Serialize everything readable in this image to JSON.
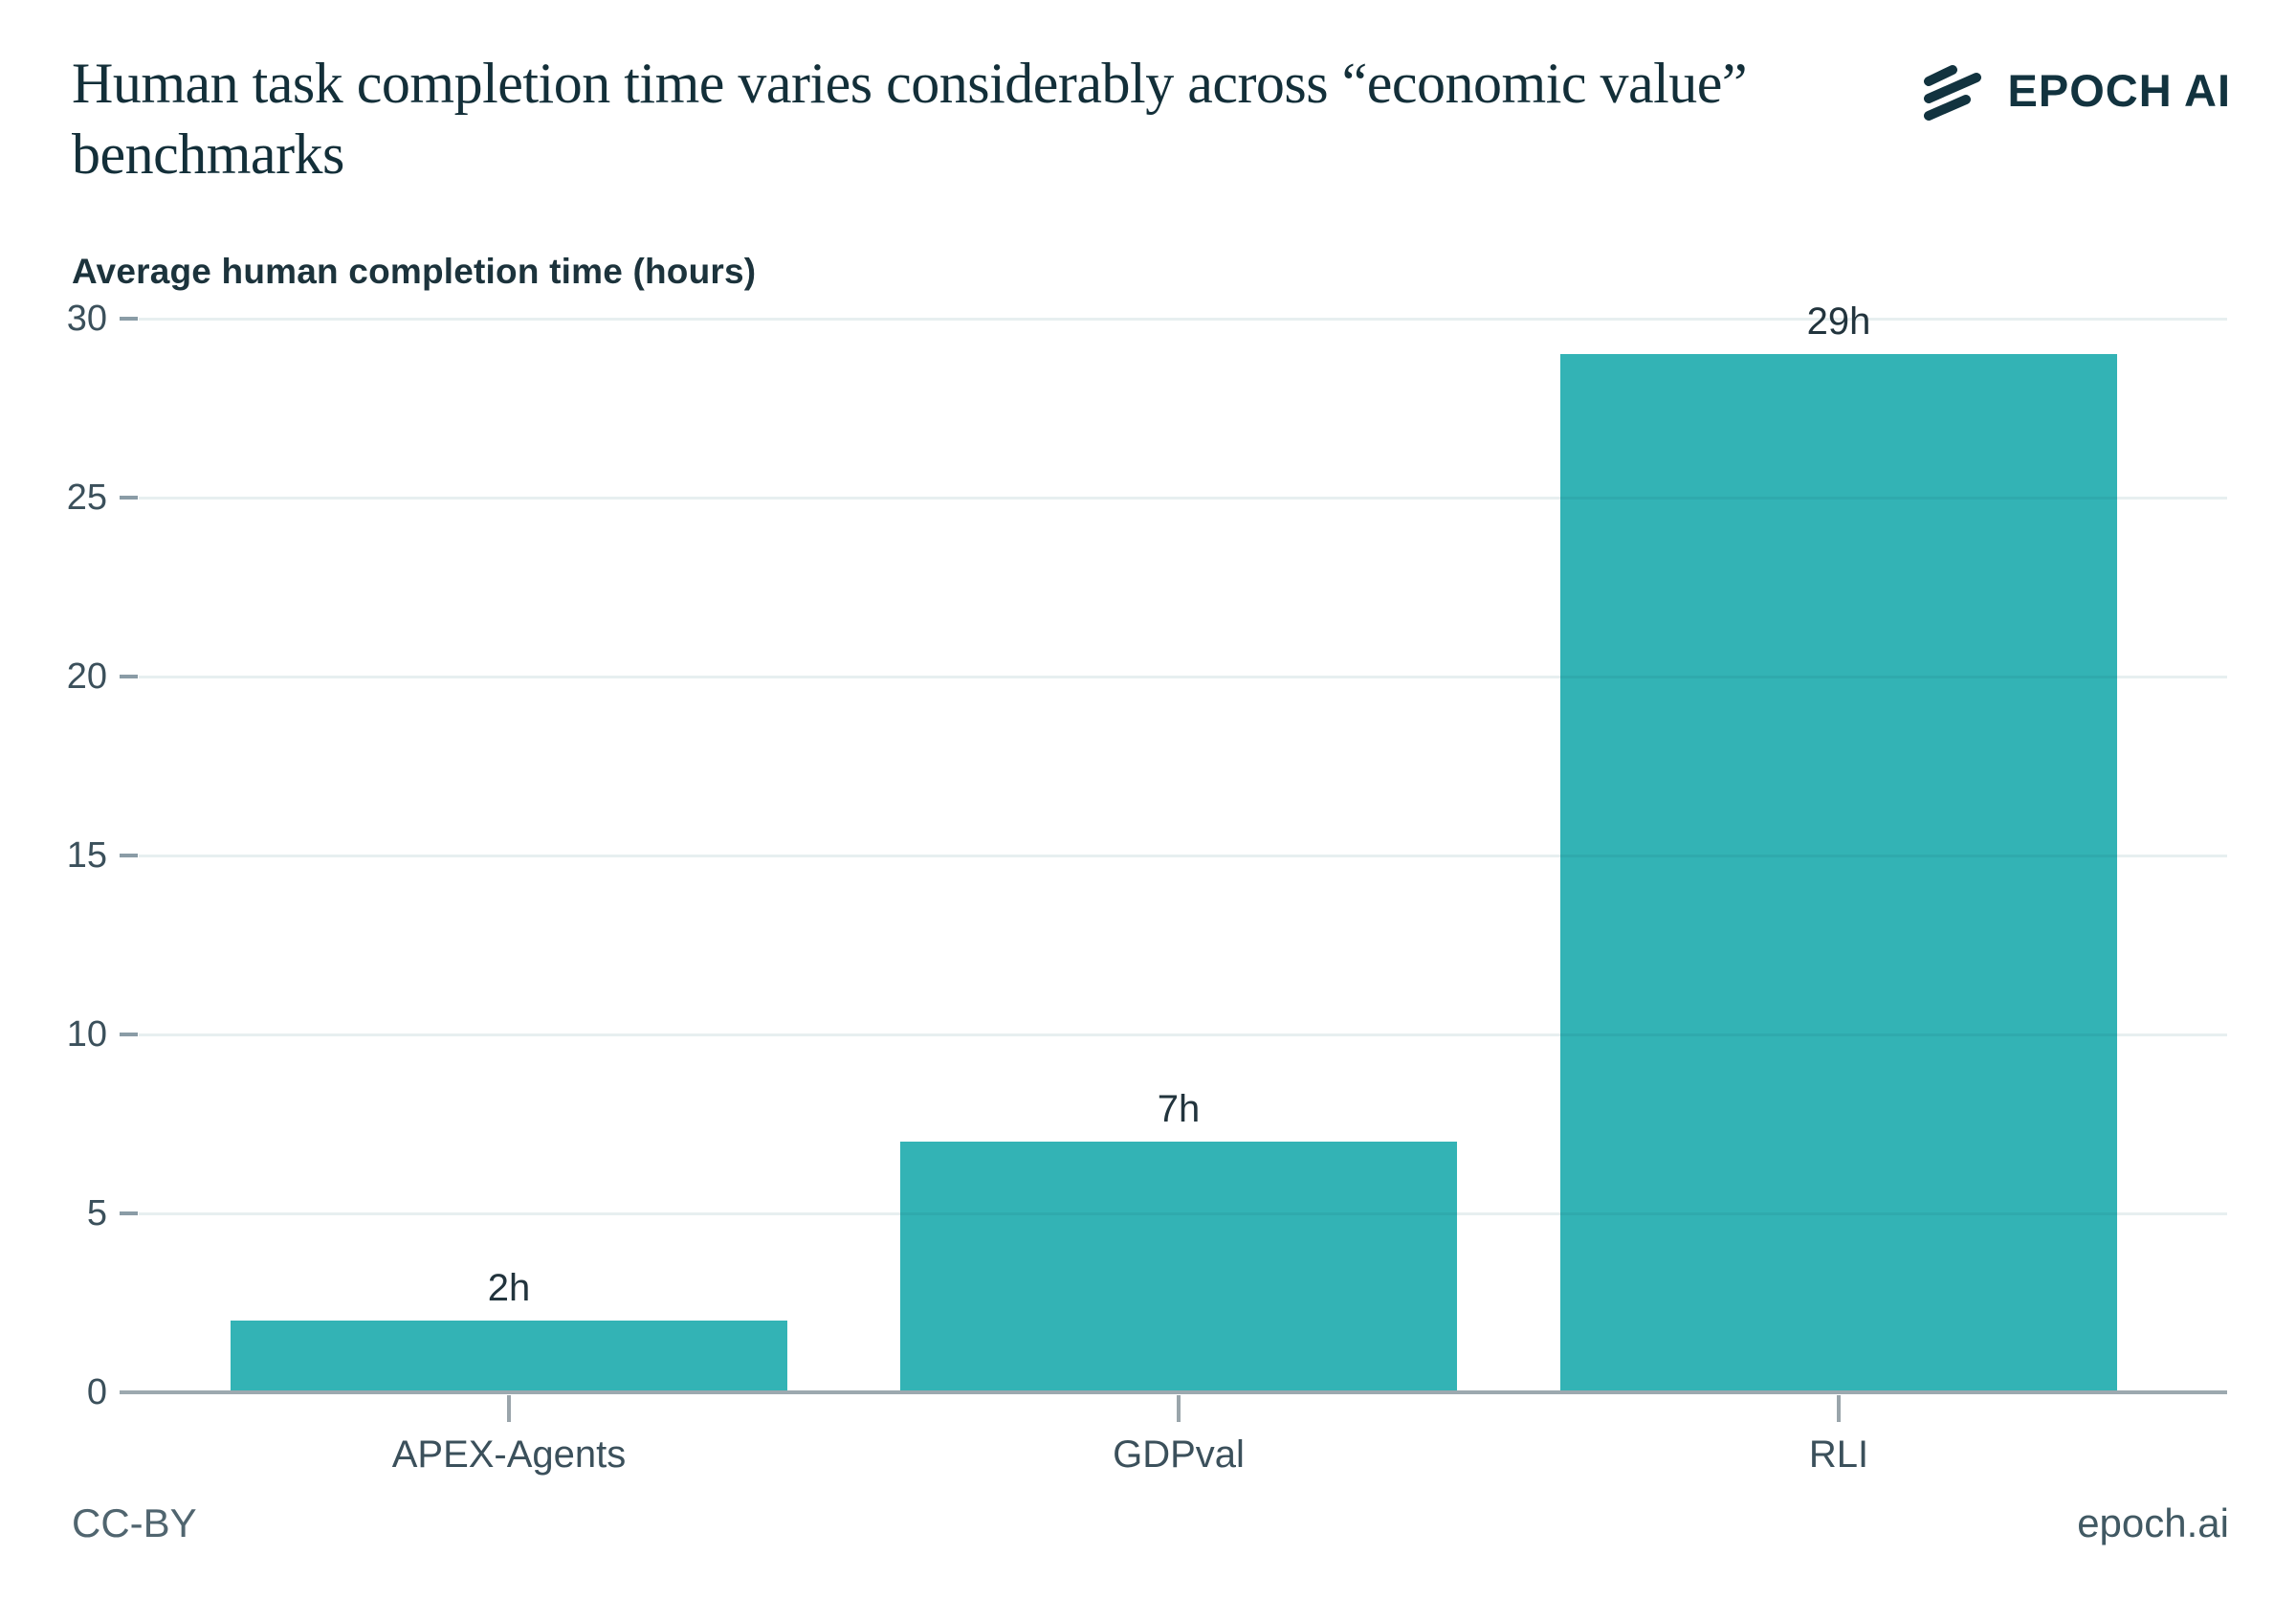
{
  "header": {
    "title": "Human task completion time varies considerably across “economic value” benchmarks",
    "logo_text": "EPOCH AI"
  },
  "colors": {
    "bar": "#33b3b5",
    "brand_dark": "#12333f",
    "axis_text": "#3b505b",
    "gridline_base": "#e4eef0"
  },
  "chart_data": {
    "type": "bar",
    "title": "Human task completion time varies considerably across “economic value” benchmarks",
    "ylabel": "Average human completion time (hours)",
    "xlabel": "",
    "categories": [
      "APEX-Agents",
      "GDPval",
      "RLI"
    ],
    "values": [
      2,
      7,
      29
    ],
    "value_labels": [
      "2h",
      "7h",
      "29h"
    ],
    "y_ticks": [
      0,
      5,
      10,
      15,
      20,
      25,
      30
    ],
    "ylim": [
      0,
      30
    ],
    "grid": true,
    "legend": "none"
  },
  "footer": {
    "license": "CC-BY",
    "site": "epoch.ai"
  }
}
